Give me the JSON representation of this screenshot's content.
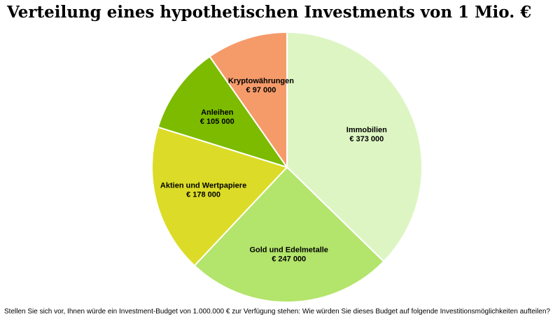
{
  "chart_data": {
    "type": "pie",
    "title": "Verteilung eines hypothetischen Investments von 1 Mio. €",
    "slices": [
      {
        "label": "Immobilien",
        "value": 373000,
        "value_label": "€ 373 000",
        "color": "#ddf5c3"
      },
      {
        "label": "Gold und Edelmetalle",
        "value": 247000,
        "value_label": "€ 247 000",
        "color": "#b3e46b"
      },
      {
        "label": "Aktien und Wertpapiere",
        "value": 178000,
        "value_label": "€ 178 000",
        "color": "#dcdc28"
      },
      {
        "label": "Anleihen",
        "value": 105000,
        "value_label": "€ 105 000",
        "color": "#7cbb00"
      },
      {
        "label": "Kryptowährungen",
        "value": 97000,
        "value_label": "€ 97 000",
        "color": "#f59b6a"
      }
    ],
    "caption": "Stellen Sie sich vor, Ihnen würde ein Investment-Budget von 1.000.000 € zur Verfügung stehen: Wie würden Sie dieses Budget auf folgende Investitionsmöglichkeiten aufteilen?"
  }
}
